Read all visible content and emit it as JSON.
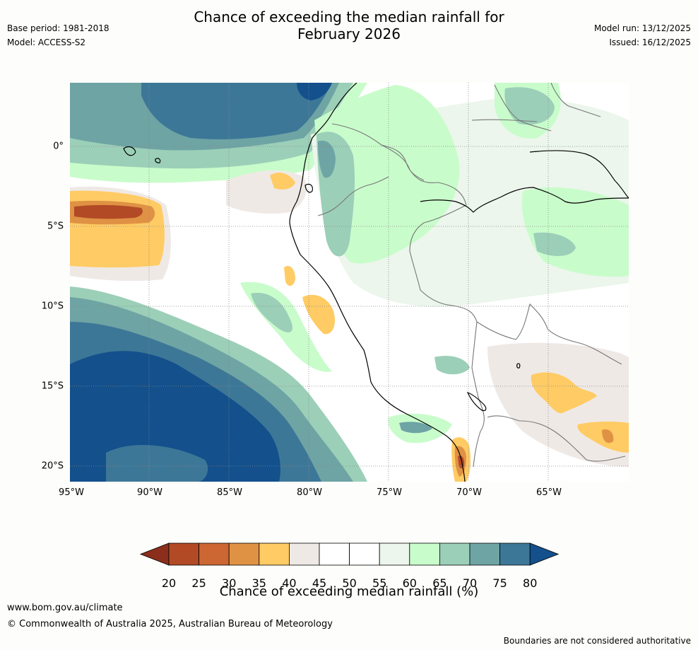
{
  "header": {
    "title_line1": "Chance of exceeding the median rainfall for",
    "title_line2": "February 2026",
    "base_period": "Base period: 1981-2018",
    "model": "Model: ACCESS-S2",
    "model_run": "Model run: 13/12/2025",
    "issued": "Issued: 16/12/2025"
  },
  "map": {
    "lon_labels": [
      "95°W",
      "90°W",
      "85°W",
      "80°W",
      "75°W",
      "70°W",
      "65°W"
    ],
    "lat_labels": [
      "0°",
      "5°S",
      "10°S",
      "15°S",
      "20°S"
    ],
    "colors": {
      "ocean_blue_dark": "#13508c",
      "ocean_blue": "#3d7797",
      "teal": "#6ea4a4",
      "mint": "#9ccfb8",
      "light_green": "#c9fccb",
      "pale_green": "#ecf6ec",
      "white": "#ffffff",
      "pale_grey": "#efe9e6",
      "yellow": "#ffcb64",
      "orange": "#e09244",
      "brown": "#b24a26"
    }
  },
  "colorbar": {
    "labels": [
      "20",
      "25",
      "30",
      "35",
      "40",
      "45",
      "50",
      "55",
      "60",
      "65",
      "70",
      "75",
      "80"
    ],
    "colors": [
      "#8b2f1c",
      "#b24a26",
      "#cc6633",
      "#e09244",
      "#ffcb64",
      "#efe9e6",
      "#ffffff",
      "#ffffff",
      "#ecf6ec",
      "#c9fccb",
      "#9ccfb8",
      "#6ea4a4",
      "#3d7797",
      "#13508c"
    ],
    "title": "Chance of exceeding median rainfall (%)"
  },
  "footer": {
    "url": "www.bom.gov.au/climate",
    "copyright": "© Commonwealth of Australia 2025, Australian Bureau of Meteorology",
    "disclaimer": "Boundaries are not considered authoritative"
  }
}
